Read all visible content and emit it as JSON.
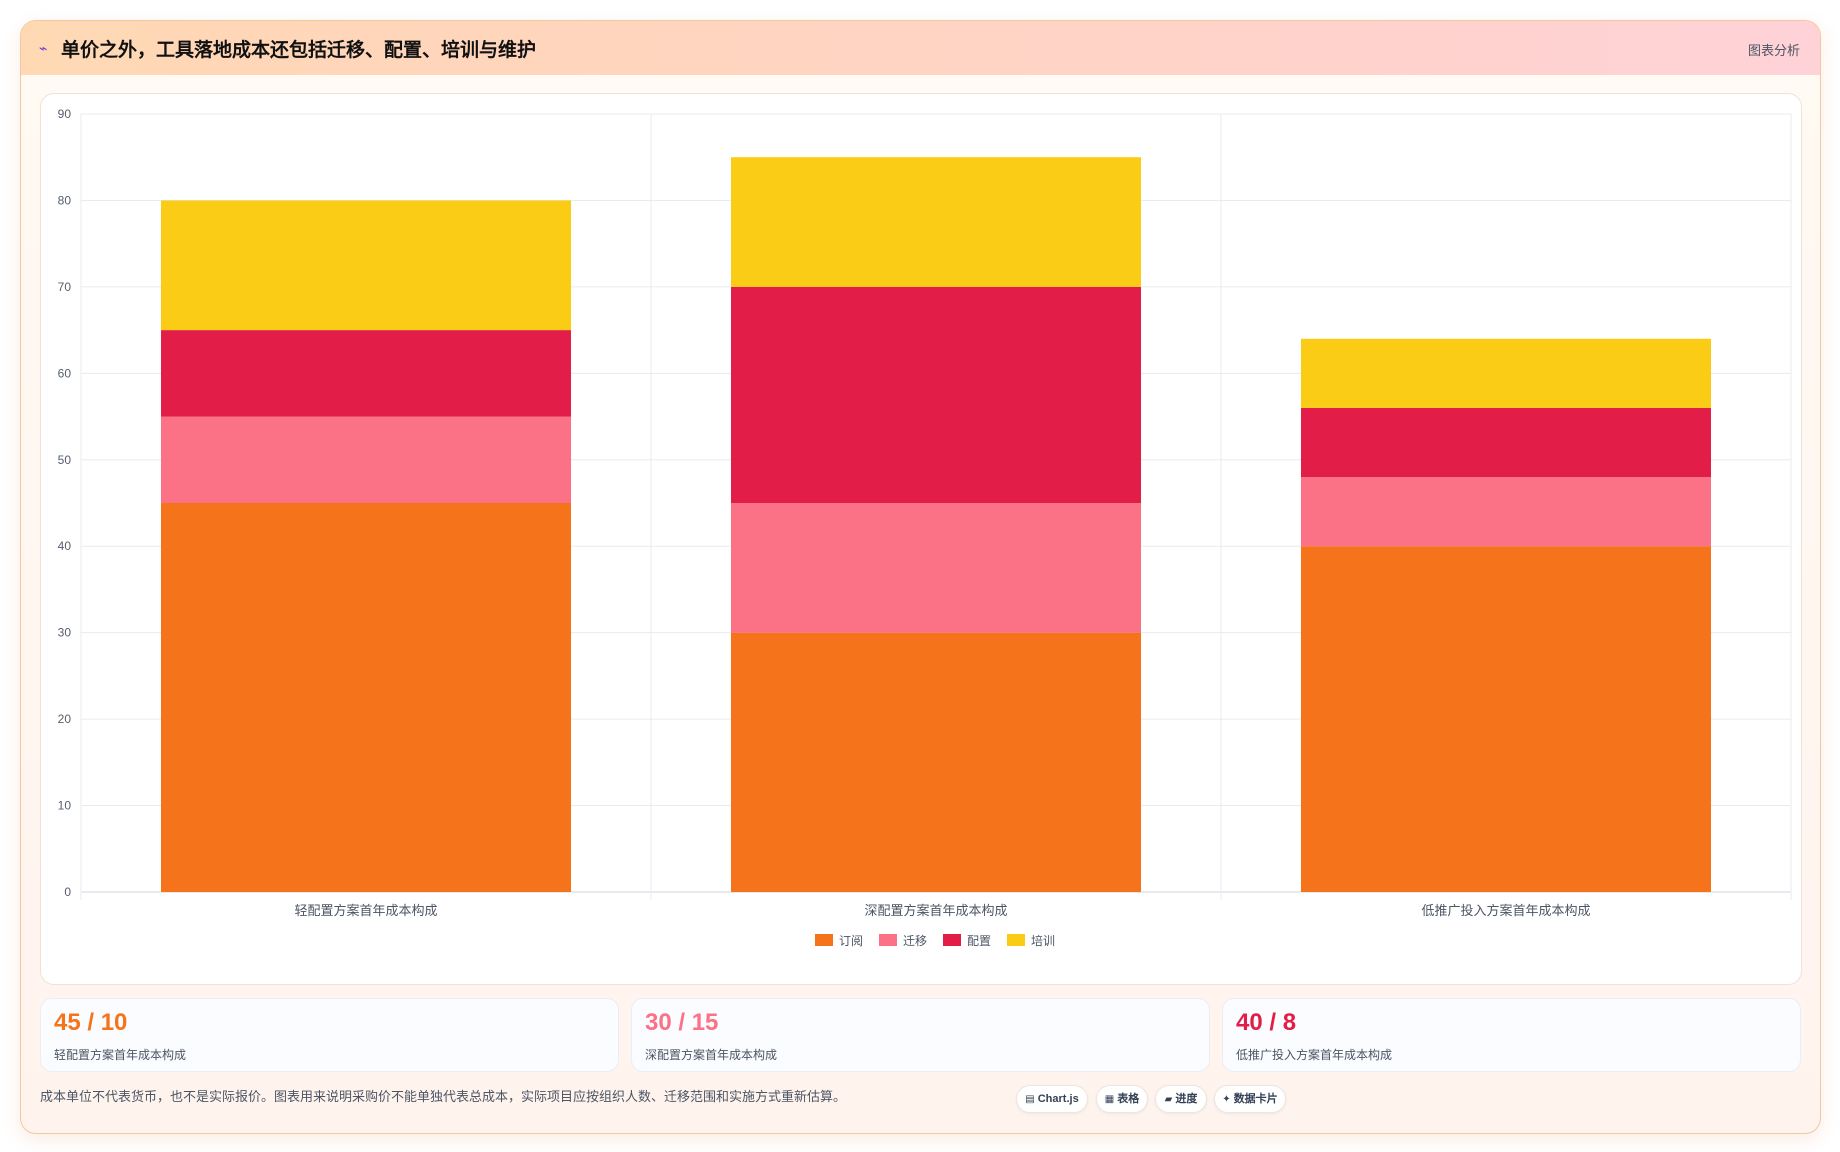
{
  "header": {
    "icon": "line-chart-icon",
    "title": "单价之外，工具落地成本还包括迁移、配置、培训与维护",
    "link": "图表分析"
  },
  "chart_data": {
    "type": "bar",
    "stacked": true,
    "categories": [
      "轻配置方案首年成本构成",
      "深配置方案首年成本构成",
      "低推广投入方案首年成本构成"
    ],
    "series": [
      {
        "name": "订阅",
        "values": [
          45,
          30,
          40
        ],
        "color": "#f5731a"
      },
      {
        "name": "迁移",
        "values": [
          10,
          15,
          8
        ],
        "color": "#fb7185"
      },
      {
        "name": "配置",
        "values": [
          10,
          25,
          8
        ],
        "color": "#e11d48"
      },
      {
        "name": "培训",
        "values": [
          15,
          15,
          8
        ],
        "color": "#facc15"
      }
    ],
    "ylim": [
      0,
      90
    ],
    "yticks": [
      0,
      10,
      20,
      30,
      40,
      50,
      60,
      70,
      80,
      90
    ],
    "grid": true,
    "legend": "bottom"
  },
  "stats": [
    {
      "value": "45 / 10",
      "label": "轻配置方案首年成本构成",
      "color": "#f5731a"
    },
    {
      "value": "30 / 15",
      "label": "深配置方案首年成本构成",
      "color": "#fb7185"
    },
    {
      "value": "40 / 8",
      "label": "低推广投入方案首年成本构成",
      "color": "#e11d48"
    }
  ],
  "footnote": "成本单位不代表货币，也不是实际报价。图表用来说明采购价不能单独代表总成本，实际项目应按组织人数、迁移范围和实施方式重新估算。",
  "chips": [
    {
      "icon": "chart-icon",
      "glyph": "▤",
      "label": "Chart.js"
    },
    {
      "icon": "table-icon",
      "glyph": "▦",
      "label": "表格"
    },
    {
      "icon": "progress-icon",
      "glyph": "▰",
      "label": "进度"
    },
    {
      "icon": "data-card-icon",
      "glyph": "✦",
      "label": "数据卡片"
    }
  ]
}
